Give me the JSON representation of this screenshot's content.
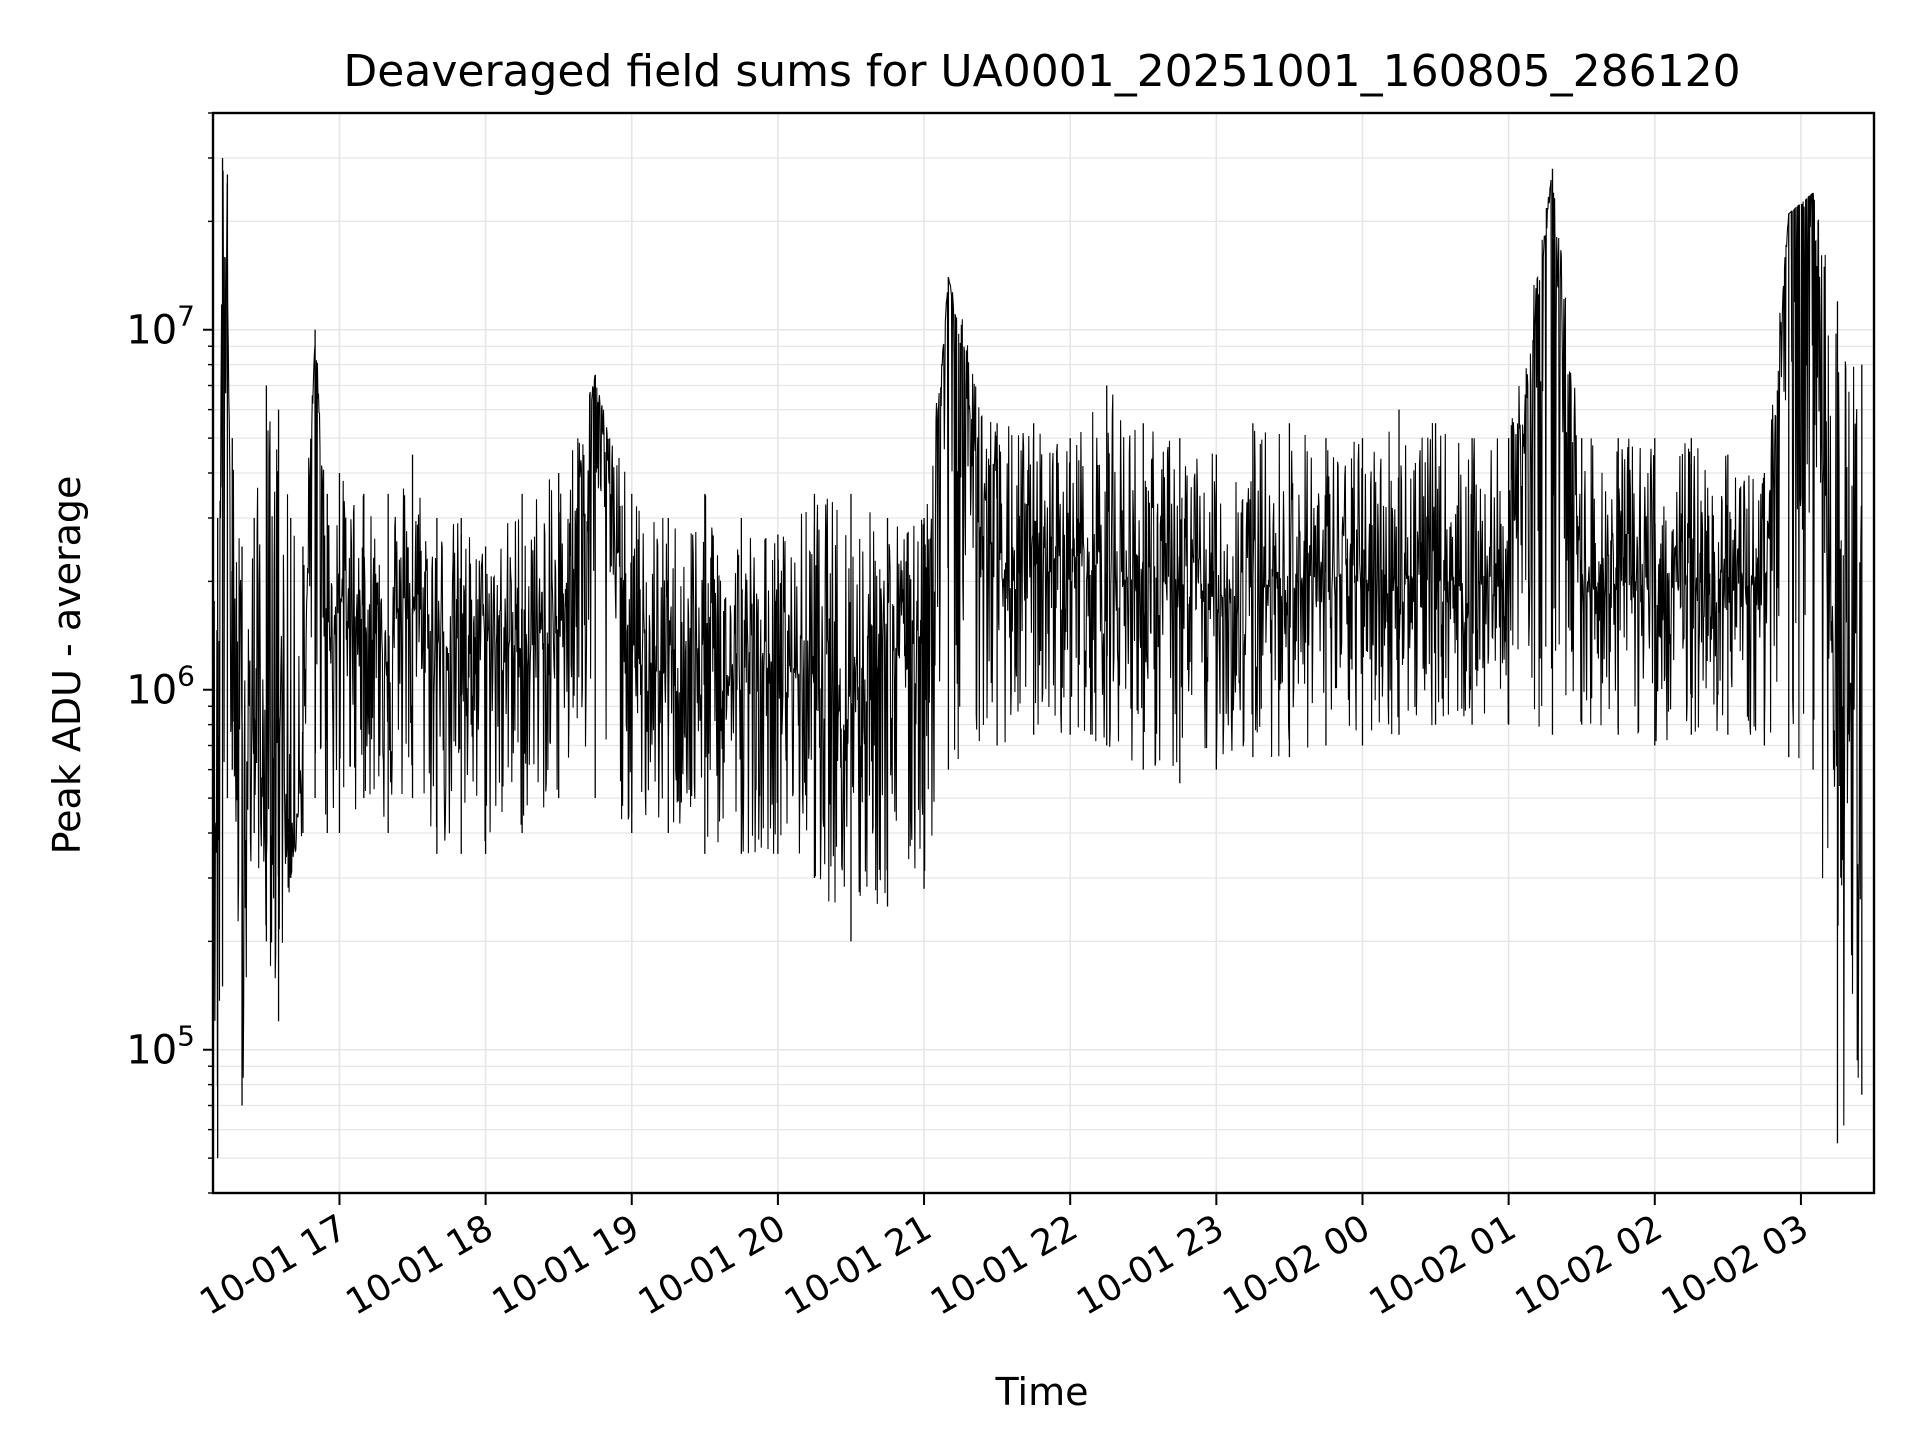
{
  "chart_data": {
    "type": "line",
    "title": "Deaveraged field sums for UA0001_20251001_160805_286120",
    "xlabel": "Time",
    "ylabel": "Peak ADU - average",
    "yscale": "log",
    "ylim": [
      40000,
      40000000
    ],
    "xlim": [
      "2025-10-01 16:08:05",
      "2025-10-02 03:30:00"
    ],
    "grid": true,
    "line_color": "#000000",
    "x_ticks": [
      {
        "value": "2025-10-01 17:00",
        "label": "10-01 17"
      },
      {
        "value": "2025-10-01 18:00",
        "label": "10-01 18"
      },
      {
        "value": "2025-10-01 19:00",
        "label": "10-01 19"
      },
      {
        "value": "2025-10-01 20:00",
        "label": "10-01 20"
      },
      {
        "value": "2025-10-01 21:00",
        "label": "10-01 21"
      },
      {
        "value": "2025-10-01 22:00",
        "label": "10-01 22"
      },
      {
        "value": "2025-10-01 23:00",
        "label": "10-01 23"
      },
      {
        "value": "2025-10-02 00:00",
        "label": "10-02 00"
      },
      {
        "value": "2025-10-02 01:00",
        "label": "10-02 01"
      },
      {
        "value": "2025-10-02 02:00",
        "label": "10-02 02"
      },
      {
        "value": "2025-10-02 03:00",
        "label": "10-02 03"
      }
    ],
    "y_ticks": [
      {
        "value": 100000,
        "base": "10",
        "exp": "5"
      },
      {
        "value": 1000000,
        "base": "10",
        "exp": "6"
      },
      {
        "value": 10000000,
        "base": "10",
        "exp": "7"
      }
    ],
    "series": [
      {
        "x": [
          "2025-10-01 16:08",
          "2025-10-01 16:10",
          "2025-10-01 16:12",
          "2025-10-01 16:14",
          "2025-10-01 16:16",
          "2025-10-01 16:20",
          "2025-10-01 16:25",
          "2025-10-01 16:30",
          "2025-10-01 16:35",
          "2025-10-01 16:40",
          "2025-10-01 16:45",
          "2025-10-01 16:50",
          "2025-10-01 16:55",
          "2025-10-01 17:00",
          "2025-10-01 17:10",
          "2025-10-01 17:20",
          "2025-10-01 17:30",
          "2025-10-01 17:40",
          "2025-10-01 17:50",
          "2025-10-01 18:00",
          "2025-10-01 18:15",
          "2025-10-01 18:30",
          "2025-10-01 18:45",
          "2025-10-01 19:00",
          "2025-10-01 19:15",
          "2025-10-01 19:30",
          "2025-10-01 19:45",
          "2025-10-01 20:00",
          "2025-10-01 20:15",
          "2025-10-01 20:30",
          "2025-10-01 20:45",
          "2025-10-01 21:00",
          "2025-10-01 21:10",
          "2025-10-01 21:30",
          "2025-10-01 21:45",
          "2025-10-01 22:00",
          "2025-10-01 22:15",
          "2025-10-01 22:30",
          "2025-10-01 22:45",
          "2025-10-01 23:00",
          "2025-10-01 23:15",
          "2025-10-01 23:30",
          "2025-10-01 23:45",
          "2025-10-02 00:00",
          "2025-10-02 00:15",
          "2025-10-02 00:30",
          "2025-10-02 00:45",
          "2025-10-02 01:00",
          "2025-10-02 01:18",
          "2025-10-02 01:30",
          "2025-10-02 01:45",
          "2025-10-02 02:00",
          "2025-10-02 02:15",
          "2025-10-02 02:30",
          "2025-10-02 02:45",
          "2025-10-02 02:55",
          "2025-10-02 03:05",
          "2025-10-02 03:15",
          "2025-10-02 03:25"
        ],
        "y": [
          1200000,
          300000,
          22000000,
          14000000,
          900000,
          600000,
          800000,
          400000,
          1000000,
          300000,
          700000,
          10000000,
          1500000,
          1800000,
          1500000,
          1400000,
          1700000,
          1300000,
          1400000,
          1400000,
          1300000,
          1400000,
          7500000,
          1200000,
          1100000,
          1200000,
          1000000,
          1200000,
          1100000,
          1000000,
          1300000,
          1500000,
          14000000,
          2000000,
          2200000,
          2400000,
          2100000,
          2000000,
          1900000,
          1800000,
          1900000,
          2000000,
          2100000,
          2000000,
          2100000,
          2000000,
          2000000,
          2100000,
          28000000,
          2000000,
          2000000,
          1900000,
          2000000,
          2000000,
          1900000,
          21000000,
          24000000,
          500000,
          2000000
        ],
        "envelope_max": [
          1800000,
          3000000,
          30000000,
          27000000,
          5000000,
          2500000,
          3000000,
          7000000,
          6000000,
          3000000,
          2500000,
          10000000,
          3500000,
          4000000,
          3500000,
          3500000,
          4500000,
          3000000,
          3000000,
          2500000,
          3500000,
          4000000,
          7500000,
          3500000,
          3000000,
          3500000,
          3000000,
          2700000,
          3500000,
          3500000,
          3000000,
          3000000,
          14000000,
          5500000,
          5500000,
          5000000,
          7000000,
          5500000,
          5000000,
          4500000,
          5500000,
          5500000,
          5000000,
          5000000,
          6000000,
          5500000,
          5000000,
          5000000,
          28000000,
          5000000,
          5000000,
          5000000,
          5000000,
          4500000,
          4000000,
          21000000,
          24000000,
          12000000,
          8000000
        ],
        "envelope_min": [
          80000,
          50000,
          150000,
          500000,
          600000,
          70000,
          400000,
          200000,
          120000,
          300000,
          400000,
          500000,
          400000,
          400000,
          500000,
          400000,
          500000,
          350000,
          350000,
          350000,
          400000,
          500000,
          500000,
          400000,
          400000,
          350000,
          350000,
          350000,
          300000,
          200000,
          250000,
          280000,
          600000,
          700000,
          750000,
          750000,
          700000,
          600000,
          550000,
          600000,
          650000,
          650000,
          700000,
          700000,
          750000,
          800000,
          800000,
          800000,
          750000,
          800000,
          750000,
          700000,
          750000,
          750000,
          700000,
          650000,
          600000,
          55000,
          75000
        ]
      }
    ]
  }
}
